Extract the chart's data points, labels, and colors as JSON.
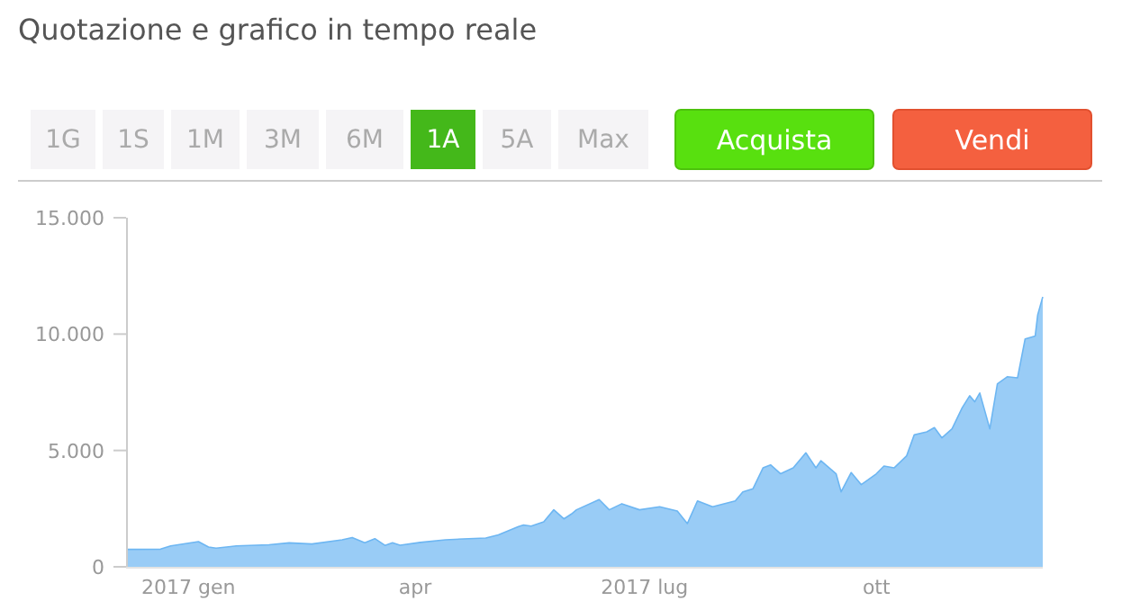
{
  "chart_data": {
    "type": "area",
    "title": "Quotazione e grafico in tempo reale",
    "annotations": [
      "1G",
      "1S",
      "1M",
      "3M",
      "6M",
      "1A",
      "5A",
      "Max",
      "Acquista",
      "Vendi"
    ],
    "x": [
      "2016-12-08",
      "2016-12-21",
      "2016-12-25",
      "2017-01-05",
      "2017-01-09",
      "2017-01-12",
      "2017-01-20",
      "2017-02-02",
      "2017-02-10",
      "2017-02-19",
      "2017-03-03",
      "2017-03-07",
      "2017-03-12",
      "2017-03-16",
      "2017-03-20",
      "2017-03-23",
      "2017-03-26",
      "2017-04-03",
      "2017-04-13",
      "2017-04-20",
      "2017-04-29",
      "2017-05-04",
      "2017-05-12",
      "2017-05-14",
      "2017-05-17",
      "2017-05-22",
      "2017-05-26",
      "2017-05-30",
      "2017-06-02",
      "2017-06-04",
      "2017-06-13",
      "2017-06-17",
      "2017-06-22",
      "2017-06-29",
      "2017-07-07",
      "2017-07-14",
      "2017-07-18",
      "2017-07-22",
      "2017-07-28",
      "2017-08-06",
      "2017-08-09",
      "2017-08-13",
      "2017-08-17",
      "2017-08-20",
      "2017-08-24",
      "2017-08-29",
      "2017-09-03",
      "2017-09-07",
      "2017-09-09",
      "2017-09-15",
      "2017-09-17",
      "2017-09-21",
      "2017-09-25",
      "2017-10-01",
      "2017-10-04",
      "2017-10-08",
      "2017-10-13",
      "2017-10-16",
      "2017-10-21",
      "2017-10-24",
      "2017-10-27",
      "2017-10-31",
      "2017-11-04",
      "2017-11-07",
      "2017-11-09",
      "2017-11-11",
      "2017-11-15",
      "2017-11-18",
      "2017-11-22",
      "2017-11-26",
      "2017-11-29",
      "2017-12-03",
      "2017-12-04",
      "2017-12-06"
    ],
    "series": [
      {
        "color": "#6db6f2",
        "values": [
          750,
          760,
          900,
          1080,
          850,
          800,
          900,
          950,
          1030,
          980,
          1160,
          1260,
          1030,
          1210,
          920,
          1030,
          930,
          1050,
          1160,
          1200,
          1240,
          1370,
          1730,
          1800,
          1750,
          1930,
          2450,
          2060,
          2270,
          2450,
          2890,
          2450,
          2710,
          2450,
          2580,
          2400,
          1860,
          2830,
          2580,
          2830,
          3220,
          3350,
          4250,
          4380,
          4000,
          4250,
          4900,
          4250,
          4560,
          4000,
          3220,
          4050,
          3530,
          4000,
          4330,
          4250,
          4770,
          5670,
          5800,
          5980,
          5540,
          5930,
          6830,
          7350,
          7090,
          7470,
          5930,
          7860,
          8170,
          8120,
          9790,
          9920,
          10830,
          11600
        ]
      }
    ],
    "xlim": [
      "2016-12-08",
      "2017-12-06"
    ],
    "xticks": [
      {
        "value": "2017-01-01",
        "label": "2017 gen"
      },
      {
        "value": "2017-04-01",
        "label": "apr"
      },
      {
        "value": "2017-07-01",
        "label": "2017 lug"
      },
      {
        "value": "2017-10-01",
        "label": "ott"
      }
    ],
    "ylim": [
      0,
      15000
    ],
    "yticks": [
      {
        "value": 0,
        "label": "0"
      },
      {
        "value": 5000,
        "label": "5.000"
      },
      {
        "value": 10000,
        "label": "10.000"
      },
      {
        "value": 15000,
        "label": "15.000"
      }
    ],
    "grid": false
  }
}
